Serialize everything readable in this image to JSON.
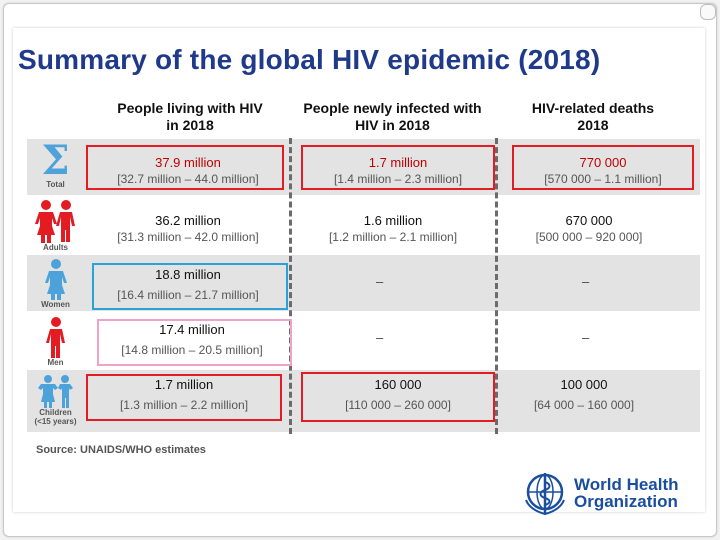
{
  "title": "Summary of the global HIV epidemic (2018)",
  "columns": {
    "living": "People living with HIV in 2018",
    "new": "People newly infected with HIV in 2018",
    "deaths": "HIV-related deaths 2018"
  },
  "rows": [
    {
      "label": "Total",
      "icon": "sigma-icon",
      "living": {
        "value": "37.9 million",
        "range": "[32.7 million – 44.0 million]"
      },
      "new": {
        "value": "1.7 million",
        "range": "[1.4 million – 2.3 million]"
      },
      "deaths": {
        "value": "770 000",
        "range": "[570 000 – 1.1 million]"
      }
    },
    {
      "label": "Adults",
      "icon": "adults-icon",
      "living": {
        "value": "36.2 million",
        "range": "[31.3 million – 42.0 million]"
      },
      "new": {
        "value": "1.6 million",
        "range": "[1.2 million – 2.1 million]"
      },
      "deaths": {
        "value": "670 000",
        "range": "[500 000 – 920 000]"
      }
    },
    {
      "label": "Women",
      "icon": "woman-icon",
      "living": {
        "value": "18.8 million",
        "range": "[16.4 million – 21.7 million]"
      },
      "new": {
        "value": "–"
      },
      "deaths": {
        "value": "–"
      }
    },
    {
      "label": "Men",
      "icon": "man-icon",
      "living": {
        "value": "17.4 million",
        "range": "[14.8 million – 20.5 million]"
      },
      "new": {
        "value": "–"
      },
      "deaths": {
        "value": "–"
      }
    },
    {
      "label": "Children",
      "sublabel": "(<15 years)",
      "icon": "children-icon",
      "living": {
        "value": "1.7 million",
        "range": "[1.3 million – 2.2 million]"
      },
      "new": {
        "value": "160 000",
        "range": "[110 000 – 260 000]"
      },
      "deaths": {
        "value": "100 000",
        "range": "[64 000 – 160 000]"
      }
    }
  ],
  "source": "Source: UNAIDS/WHO  estimates",
  "logo": {
    "line1": "World Health",
    "line2": "Organization"
  },
  "colors": {
    "title": "#1f3a8a",
    "highlight_red": "#e31b23",
    "highlight_blue": "#29a3d6",
    "highlight_pink": "#f0a2c7",
    "icon_red": "#e31b23",
    "icon_blue": "#4da3d9",
    "who_blue": "#1a4fa0"
  }
}
